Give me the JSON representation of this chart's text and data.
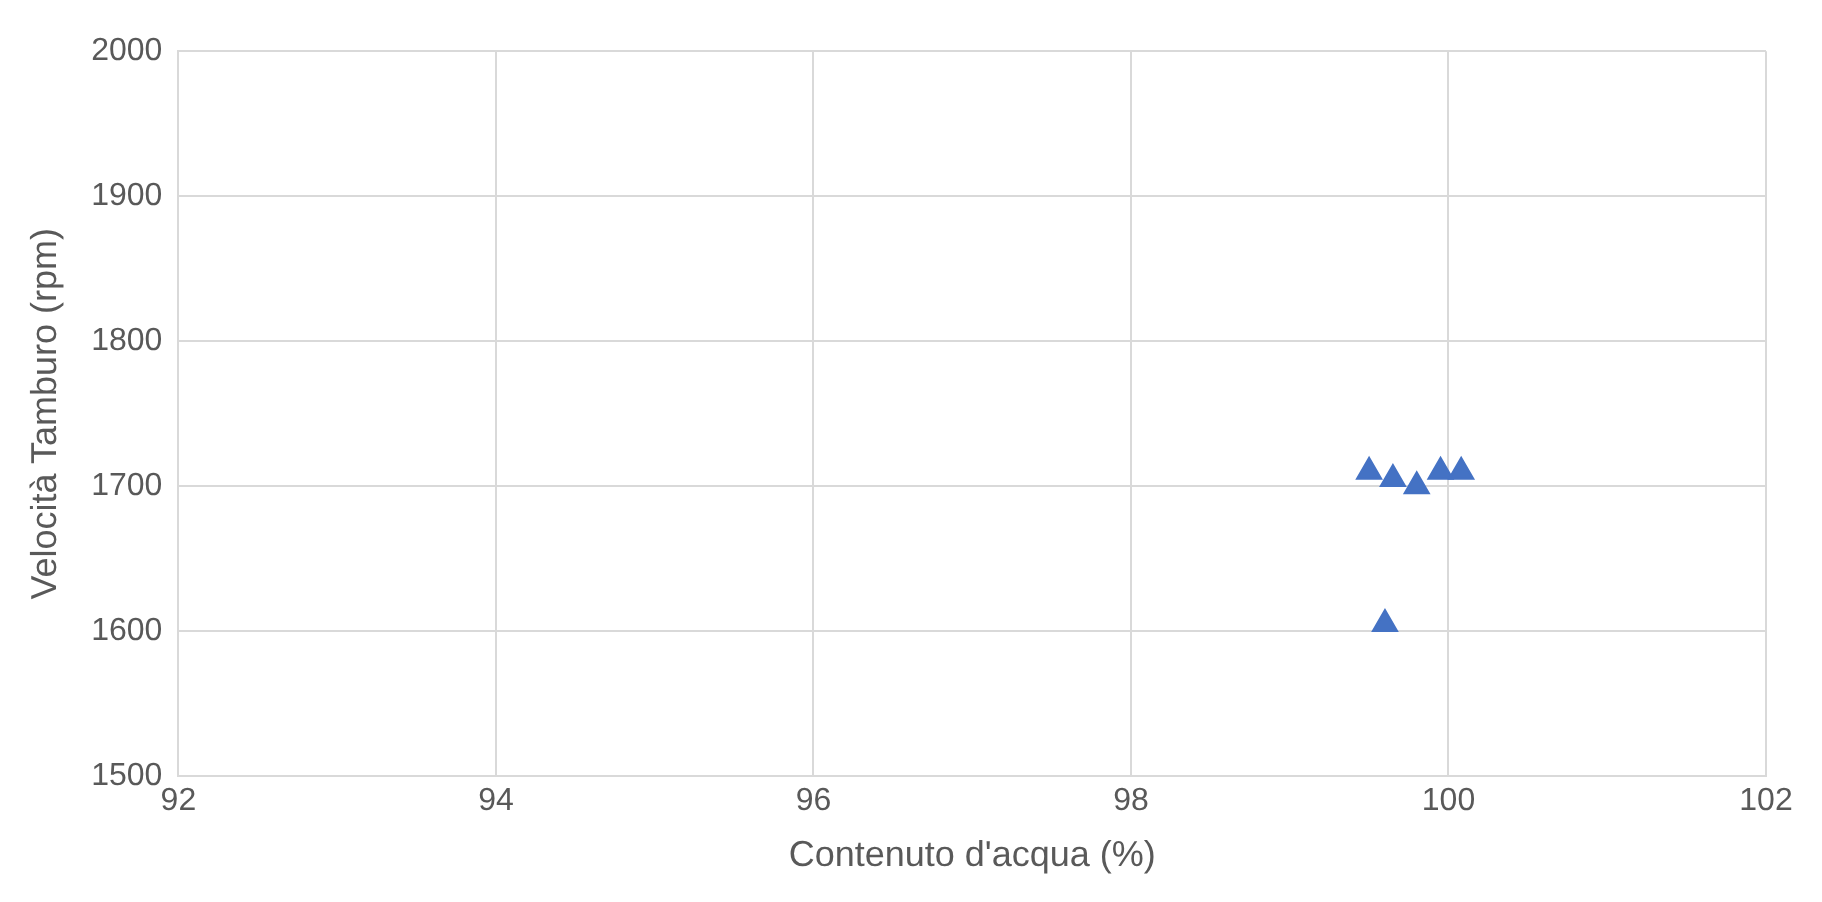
{
  "chart_data": {
    "type": "scatter",
    "xlabel": "Contenuto d'acqua (%)",
    "ylabel": "Velocità Tamburo (rpm)",
    "x": [
      99.5,
      99.65,
      99.8,
      99.95,
      100.08,
      99.6
    ],
    "series": [
      {
        "color": "#4472c4",
        "values": [
          1710,
          1705,
          1700,
          1710,
          1710,
          1605
        ]
      }
    ],
    "xlim": [
      92,
      102
    ],
    "xticks": [
      92,
      94,
      96,
      98,
      100,
      102
    ],
    "ylim": [
      1500,
      2000
    ],
    "yticks": [
      1500,
      1600,
      1700,
      1800,
      1900,
      2000
    ],
    "grid": true,
    "legend": false,
    "marker": "triangle"
  }
}
